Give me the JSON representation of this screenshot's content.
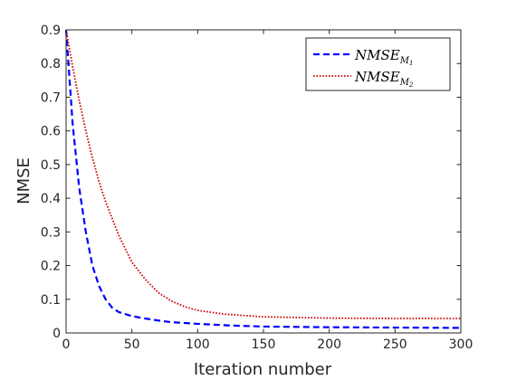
{
  "chart_data": {
    "type": "line",
    "title": "",
    "xlabel": "Iteration number",
    "ylabel": "NMSE",
    "xlim": [
      0,
      300
    ],
    "ylim": [
      0,
      0.9
    ],
    "xticks": [
      0,
      50,
      100,
      150,
      200,
      250,
      300
    ],
    "yticks": [
      0,
      0.1,
      0.2,
      0.3,
      0.4,
      0.5,
      0.6,
      0.7,
      0.8,
      0.9
    ],
    "xtick_labels": [
      "0",
      "50",
      "100",
      "150",
      "200",
      "250",
      "300"
    ],
    "ytick_labels": [
      "0",
      "0.1",
      "0.2",
      "0.3",
      "0.4",
      "0.5",
      "0.6",
      "0.7",
      "0.8",
      "0.9"
    ],
    "grid": false,
    "legend_position": "top-right",
    "series": [
      {
        "name": "NMSE_M1",
        "legend_main": "NMSE",
        "legend_sub": "M",
        "legend_subsub": "1",
        "color": "#0000ff",
        "style": "dashed",
        "x": [
          0,
          5,
          10,
          15,
          20,
          25,
          30,
          35,
          40,
          50,
          60,
          70,
          80,
          100,
          125,
          150,
          200,
          250,
          300
        ],
        "y": [
          0.9,
          0.62,
          0.43,
          0.3,
          0.2,
          0.14,
          0.1,
          0.075,
          0.062,
          0.05,
          0.043,
          0.037,
          0.032,
          0.027,
          0.022,
          0.019,
          0.017,
          0.016,
          0.015
        ]
      },
      {
        "name": "NMSE_M2",
        "legend_main": "NMSE",
        "legend_sub": "M",
        "legend_subsub": "2",
        "color": "#cc0000",
        "style": "dotted",
        "x": [
          0,
          5,
          10,
          15,
          20,
          25,
          30,
          40,
          50,
          60,
          70,
          80,
          90,
          100,
          120,
          150,
          200,
          250,
          300
        ],
        "y": [
          0.9,
          0.79,
          0.69,
          0.6,
          0.52,
          0.45,
          0.39,
          0.29,
          0.21,
          0.16,
          0.12,
          0.095,
          0.078,
          0.067,
          0.056,
          0.048,
          0.044,
          0.043,
          0.043
        ]
      }
    ]
  }
}
